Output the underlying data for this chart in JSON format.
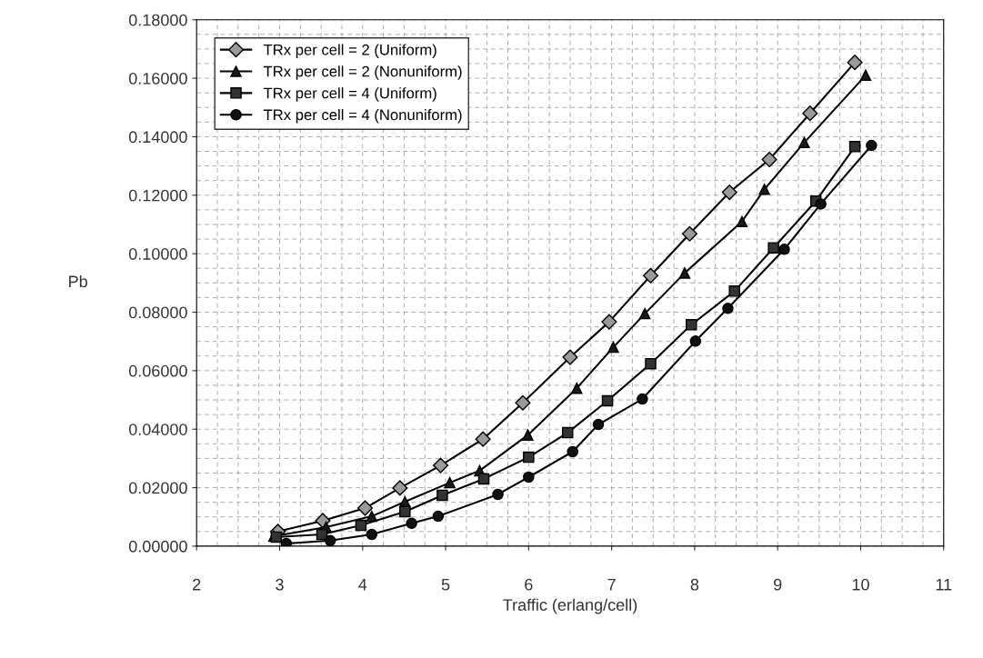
{
  "chart_data": {
    "type": "line",
    "xlabel": "Traffic (erlang/cell)",
    "ylabel": "Pb",
    "xlim": [
      2,
      11
    ],
    "xticks": [
      2,
      3,
      4,
      5,
      6,
      7,
      8,
      9,
      10,
      11
    ],
    "ylim": [
      0,
      0.18
    ],
    "yticks": [
      {
        "value": 0,
        "label": "0.00000"
      },
      {
        "value": 0.02,
        "label": "0.02000"
      },
      {
        "value": 0.04,
        "label": "0.04000"
      },
      {
        "value": 0.06,
        "label": "0.06000"
      },
      {
        "value": 0.08,
        "label": "0.08000"
      },
      {
        "value": 0.1,
        "label": "0.10000"
      },
      {
        "value": 0.12,
        "label": "0.12000"
      },
      {
        "value": 0.14,
        "label": "0.14000"
      },
      {
        "value": 0.16,
        "label": "0.16000"
      },
      {
        "value": 0.18,
        "label": "0.18000"
      }
    ],
    "grid": true,
    "legend": "top left",
    "line_style": "solid",
    "series": [
      {
        "name": "TRx per cell = 2 (Uniform)",
        "color": "#9a9a9a",
        "marker": "diamond",
        "x": [
          2.98,
          3.52,
          4.03,
          4.45,
          4.94,
          5.45,
          5.93,
          6.5,
          6.97,
          7.47,
          7.94,
          8.42,
          8.9,
          9.39,
          9.93
        ],
        "values": [
          0.005,
          0.0087,
          0.013,
          0.0199,
          0.0276,
          0.0366,
          0.049,
          0.0646,
          0.0767,
          0.0925,
          0.1068,
          0.121,
          0.1322,
          0.148,
          0.1654
        ]
      },
      {
        "name": "TRx per cell = 2 (Nonuniform)",
        "color": "#1a1a1a",
        "marker": "triangle",
        "x": [
          2.93,
          3.56,
          4.11,
          4.51,
          5.05,
          5.41,
          5.99,
          6.58,
          7.02,
          7.4,
          7.88,
          8.57,
          8.84,
          9.32,
          10.06
        ],
        "values": [
          0.0034,
          0.0065,
          0.0102,
          0.0152,
          0.0217,
          0.0258,
          0.038,
          0.054,
          0.068,
          0.0795,
          0.0934,
          0.111,
          0.122,
          0.138,
          0.161
        ]
      },
      {
        "name": "TRx per cell = 4 (Uniform)",
        "color": "#333333",
        "marker": "square",
        "x": [
          2.96,
          3.51,
          3.98,
          4.51,
          4.96,
          5.46,
          6.0,
          6.47,
          6.95,
          7.47,
          7.96,
          8.48,
          8.95,
          9.46,
          9.93
        ],
        "values": [
          0.0031,
          0.004,
          0.0071,
          0.0118,
          0.0174,
          0.023,
          0.0304,
          0.0388,
          0.0497,
          0.0624,
          0.0757,
          0.0872,
          0.102,
          0.118,
          0.1366
        ]
      },
      {
        "name": "TRx per cell = 4 (Nonuniform)",
        "color": "#111111",
        "marker": "circle",
        "x": [
          3.08,
          3.61,
          4.11,
          4.59,
          4.91,
          5.63,
          6.0,
          6.53,
          6.84,
          7.37,
          8.01,
          8.4,
          9.08,
          9.52,
          10.13
        ],
        "values": [
          0.0009,
          0.0019,
          0.004,
          0.0078,
          0.0102,
          0.0177,
          0.0236,
          0.0323,
          0.0416,
          0.0503,
          0.0701,
          0.0813,
          0.1015,
          0.117,
          0.137
        ]
      }
    ]
  }
}
